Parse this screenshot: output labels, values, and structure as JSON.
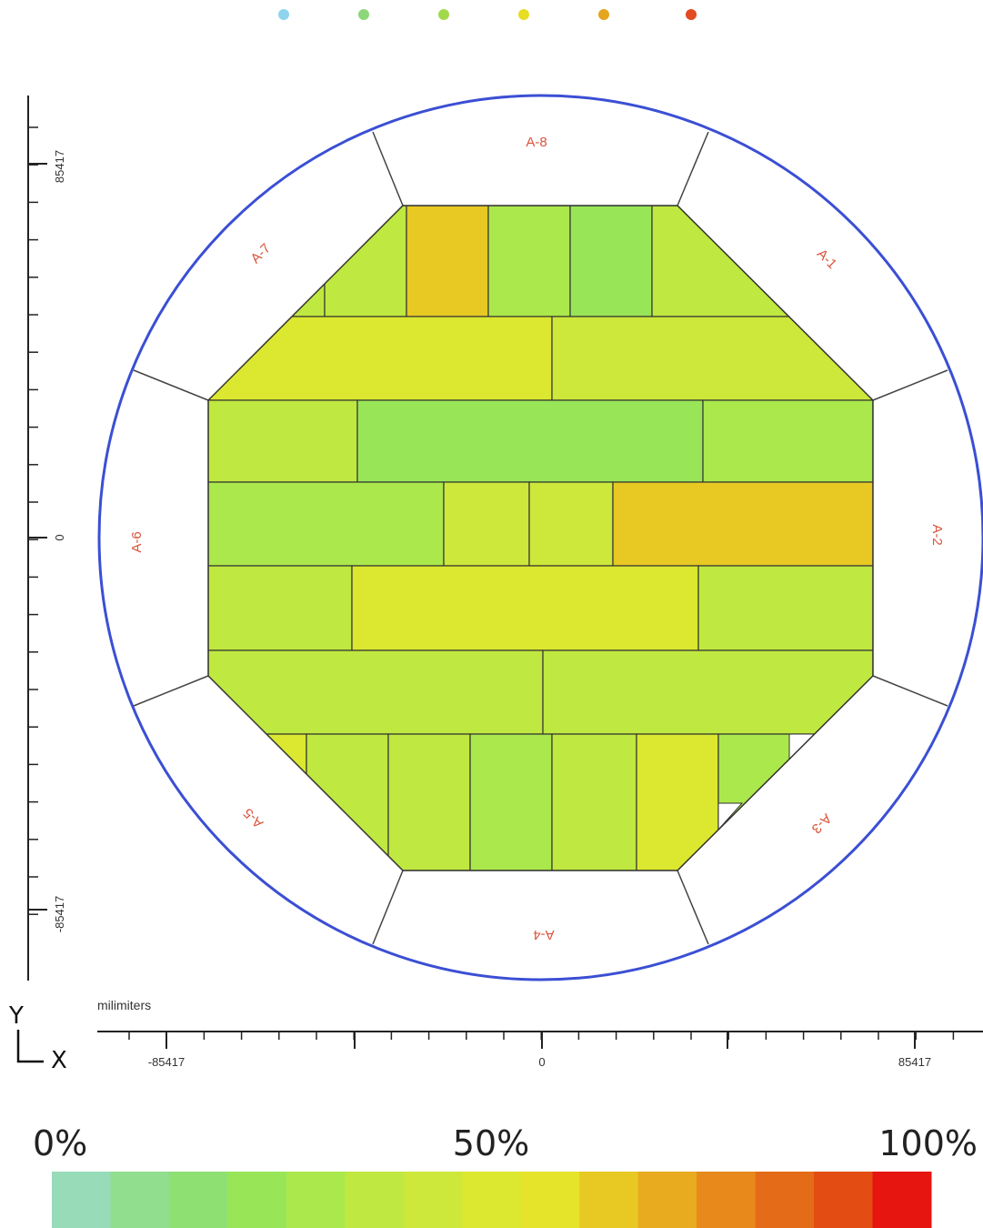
{
  "legend_dots": [
    "#8fd4ee",
    "#8dd67a",
    "#a2d94a",
    "#e8dc24",
    "#e4a51f",
    "#e34a20"
  ],
  "axes": {
    "units": "milimiters",
    "y_letter": "Y",
    "x_letter": "X",
    "y_ticks": [
      "85417",
      "0",
      "-85417"
    ],
    "x_ticks": [
      "-85417",
      "0",
      "85417"
    ]
  },
  "sectors": [
    "A-1",
    "A-2",
    "A-3",
    "A-4",
    "A-5",
    "A-6",
    "A-7",
    "A-8"
  ],
  "colorbar": {
    "label_min": "0%",
    "label_mid": "50%",
    "label_max": "100%",
    "colors": [
      "#98dbb8",
      "#90de8e",
      "#8fe073",
      "#98e657",
      "#abe84c",
      "#bfe840",
      "#cde83a",
      "#dbe82f",
      "#e6e42a",
      "#e8c823",
      "#e8aa1e",
      "#e78a1b",
      "#e46b17",
      "#e34c13",
      "#e6150f"
    ]
  },
  "chart_data": {
    "type": "heatmap",
    "title": "",
    "xlabel": "milimiters",
    "ylabel": "",
    "x_ticks": [
      -85417,
      0,
      85417
    ],
    "y_ticks": [
      85417,
      0,
      -85417
    ],
    "xlim": [
      -85417,
      85417
    ],
    "ylim": [
      -85417,
      85417
    ],
    "value_range_percent": [
      0,
      100
    ],
    "rows": [
      {
        "row": 1,
        "cells_percent": [
          35,
          35,
          62,
          28,
          25,
          35
        ]
      },
      {
        "row": 2,
        "cells_percent": [
          48,
          40
        ]
      },
      {
        "row": 3,
        "cells_percent": [
          38,
          26,
          32
        ]
      },
      {
        "row": 4,
        "cells_percent": [
          32,
          42,
          45,
          62
        ]
      },
      {
        "row": 5,
        "cells_percent": [
          38,
          50,
          38
        ]
      },
      {
        "row": 6,
        "cells_percent": [
          38,
          38
        ]
      },
      {
        "row": 7,
        "cells_percent": [
          50,
          38,
          38,
          30,
          38,
          52,
          30
        ]
      }
    ]
  }
}
